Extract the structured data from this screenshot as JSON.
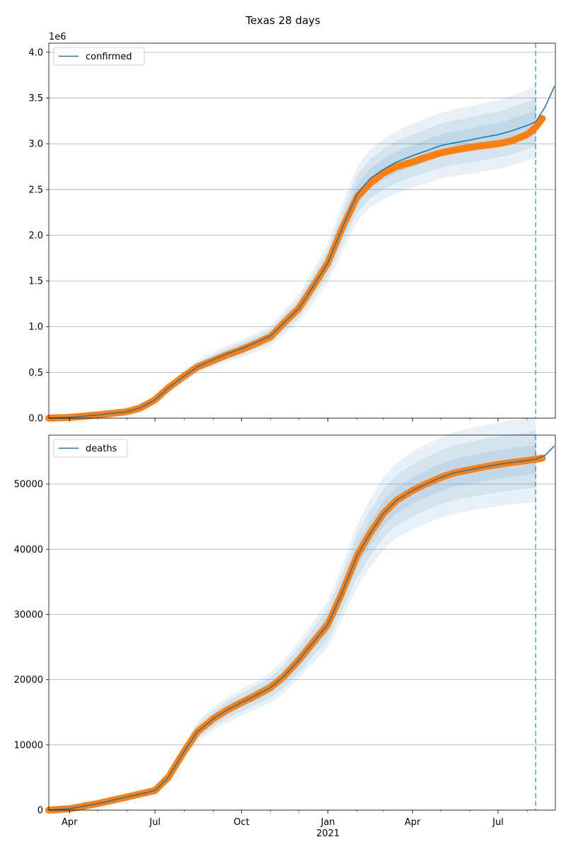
{
  "figure": {
    "title": "Texas 28 days"
  },
  "chart_data": [
    {
      "type": "line",
      "title": "",
      "legend": [
        "confirmed"
      ],
      "legend_placement": "top-left",
      "y_offset_label": "1e6",
      "y_scale": 1000000,
      "ylim": [
        0,
        4100000
      ],
      "yticks": [
        0,
        500000,
        1000000,
        1500000,
        2000000,
        2500000,
        3000000,
        3500000,
        4000000
      ],
      "ytick_labels": [
        "0.0",
        "0.5",
        "1.0",
        "1.5",
        "2.0",
        "2.5",
        "3.0",
        "3.5",
        "4.0"
      ],
      "xlim": [
        "2020-03-10",
        "2021-08-31"
      ],
      "xticks": [
        "2020-04-01",
        "2020-07-01",
        "2020-10-01",
        "2021-01-01",
        "2021-04-01",
        "2021-07-01"
      ],
      "xtick_labels": [
        "Apr",
        "Jul",
        "Oct",
        "Jan",
        "Apr",
        "Jul"
      ],
      "xtick_year_label": "2021",
      "grid": "horizontal",
      "forecast_start": "2021-08-10",
      "series": [
        {
          "name": "confirmed",
          "role": "model",
          "color": "#1f77b4",
          "points": [
            [
              "2020-03-10",
              0
            ],
            [
              "2020-04-01",
              8000
            ],
            [
              "2020-05-01",
              35000
            ],
            [
              "2020-06-01",
              70000
            ],
            [
              "2020-06-15",
              110000
            ],
            [
              "2020-07-01",
              200000
            ],
            [
              "2020-07-15",
              330000
            ],
            [
              "2020-08-01",
              460000
            ],
            [
              "2020-08-15",
              560000
            ],
            [
              "2020-09-01",
              640000
            ],
            [
              "2020-09-15",
              700000
            ],
            [
              "2020-10-01",
              760000
            ],
            [
              "2020-10-15",
              820000
            ],
            [
              "2020-11-01",
              900000
            ],
            [
              "2020-11-15",
              1040000
            ],
            [
              "2020-12-01",
              1200000
            ],
            [
              "2020-12-15",
              1420000
            ],
            [
              "2021-01-01",
              1700000
            ],
            [
              "2021-01-15",
              2050000
            ],
            [
              "2021-02-01",
              2450000
            ],
            [
              "2021-02-15",
              2620000
            ],
            [
              "2021-03-01",
              2720000
            ],
            [
              "2021-03-15",
              2800000
            ],
            [
              "2021-04-01",
              2870000
            ],
            [
              "2021-04-15",
              2920000
            ],
            [
              "2021-05-01",
              2980000
            ],
            [
              "2021-05-15",
              3010000
            ],
            [
              "2021-06-01",
              3040000
            ],
            [
              "2021-06-15",
              3070000
            ],
            [
              "2021-07-01",
              3100000
            ],
            [
              "2021-07-15",
              3140000
            ],
            [
              "2021-08-01",
              3200000
            ],
            [
              "2021-08-10",
              3240000
            ],
            [
              "2021-08-20",
              3400000
            ],
            [
              "2021-08-31",
              3650000
            ]
          ]
        },
        {
          "name": "observed",
          "role": "observed",
          "color": "#ff7f0e",
          "points": [
            [
              "2020-03-10",
              0
            ],
            [
              "2020-04-01",
              8000
            ],
            [
              "2020-05-01",
              35000
            ],
            [
              "2020-06-01",
              70000
            ],
            [
              "2020-06-15",
              110000
            ],
            [
              "2020-07-01",
              200000
            ],
            [
              "2020-07-15",
              330000
            ],
            [
              "2020-08-01",
              460000
            ],
            [
              "2020-08-15",
              560000
            ],
            [
              "2020-09-01",
              630000
            ],
            [
              "2020-09-15",
              690000
            ],
            [
              "2020-10-01",
              750000
            ],
            [
              "2020-10-15",
              810000
            ],
            [
              "2020-11-01",
              890000
            ],
            [
              "2020-11-15",
              1040000
            ],
            [
              "2020-12-01",
              1200000
            ],
            [
              "2020-12-15",
              1420000
            ],
            [
              "2021-01-01",
              1700000
            ],
            [
              "2021-01-15",
              2050000
            ],
            [
              "2021-02-01",
              2420000
            ],
            [
              "2021-02-15",
              2570000
            ],
            [
              "2021-03-01",
              2680000
            ],
            [
              "2021-03-15",
              2750000
            ],
            [
              "2021-04-01",
              2800000
            ],
            [
              "2021-04-15",
              2850000
            ],
            [
              "2021-05-01",
              2900000
            ],
            [
              "2021-05-15",
              2930000
            ],
            [
              "2021-06-01",
              2960000
            ],
            [
              "2021-06-15",
              2980000
            ],
            [
              "2021-07-01",
              3000000
            ],
            [
              "2021-07-15",
              3030000
            ],
            [
              "2021-08-01",
              3100000
            ],
            [
              "2021-08-10",
              3180000
            ],
            [
              "2021-08-18",
              3290000
            ]
          ]
        }
      ]
    },
    {
      "type": "line",
      "title": "",
      "legend": [
        "deaths"
      ],
      "legend_placement": "top-left",
      "ylim": [
        0,
        57500
      ],
      "yticks": [
        0,
        10000,
        20000,
        30000,
        40000,
        50000
      ],
      "ytick_labels": [
        "0",
        "10000",
        "20000",
        "30000",
        "40000",
        "50000"
      ],
      "xlim": [
        "2020-03-10",
        "2021-08-31"
      ],
      "xticks": [
        "2020-04-01",
        "2020-07-01",
        "2020-10-01",
        "2021-01-01",
        "2021-04-01",
        "2021-07-01"
      ],
      "xtick_labels": [
        "Apr",
        "Jul",
        "Oct",
        "Jan",
        "Apr",
        "Jul"
      ],
      "xtick_year_label": "2021",
      "grid": "horizontal",
      "forecast_start": "2021-08-10",
      "series": [
        {
          "name": "deaths",
          "role": "model",
          "color": "#1f77b4",
          "points": [
            [
              "2020-03-10",
              0
            ],
            [
              "2020-04-01",
              200
            ],
            [
              "2020-05-01",
              1000
            ],
            [
              "2020-06-01",
              2000
            ],
            [
              "2020-07-01",
              3000
            ],
            [
              "2020-07-15",
              5000
            ],
            [
              "2020-08-01",
              9000
            ],
            [
              "2020-08-15",
              12000
            ],
            [
              "2020-09-01",
              14000
            ],
            [
              "2020-09-15",
              15300
            ],
            [
              "2020-10-01",
              16500
            ],
            [
              "2020-10-15",
              17500
            ],
            [
              "2020-11-01",
              18800
            ],
            [
              "2020-11-15",
              20500
            ],
            [
              "2020-12-01",
              23000
            ],
            [
              "2020-12-15",
              25500
            ],
            [
              "2021-01-01",
              28500
            ],
            [
              "2021-01-15",
              33000
            ],
            [
              "2021-02-01",
              39000
            ],
            [
              "2021-02-15",
              42500
            ],
            [
              "2021-03-01",
              45500
            ],
            [
              "2021-03-15",
              47500
            ],
            [
              "2021-04-01",
              49000
            ],
            [
              "2021-04-15",
              50000
            ],
            [
              "2021-05-01",
              51000
            ],
            [
              "2021-05-15",
              51700
            ],
            [
              "2021-06-01",
              52200
            ],
            [
              "2021-06-15",
              52600
            ],
            [
              "2021-07-01",
              53000
            ],
            [
              "2021-07-15",
              53300
            ],
            [
              "2021-08-01",
              53600
            ],
            [
              "2021-08-10",
              53800
            ],
            [
              "2021-08-20",
              54400
            ],
            [
              "2021-08-31",
              56000
            ]
          ]
        },
        {
          "name": "observed",
          "role": "observed",
          "color": "#ff7f0e",
          "points": [
            [
              "2020-03-10",
              0
            ],
            [
              "2020-04-01",
              200
            ],
            [
              "2020-05-01",
              1000
            ],
            [
              "2020-06-01",
              2000
            ],
            [
              "2020-07-01",
              3000
            ],
            [
              "2020-07-15",
              5000
            ],
            [
              "2020-08-01",
              9000
            ],
            [
              "2020-08-15",
              12000
            ],
            [
              "2020-09-01",
              14000
            ],
            [
              "2020-09-15",
              15300
            ],
            [
              "2020-10-01",
              16500
            ],
            [
              "2020-10-15",
              17500
            ],
            [
              "2020-11-01",
              18800
            ],
            [
              "2020-11-15",
              20500
            ],
            [
              "2020-12-01",
              23000
            ],
            [
              "2020-12-15",
              25500
            ],
            [
              "2021-01-01",
              28500
            ],
            [
              "2021-01-15",
              33000
            ],
            [
              "2021-02-01",
              39000
            ],
            [
              "2021-02-15",
              42500
            ],
            [
              "2021-03-01",
              45500
            ],
            [
              "2021-03-15",
              47500
            ],
            [
              "2021-04-01",
              49000
            ],
            [
              "2021-04-15",
              50000
            ],
            [
              "2021-05-01",
              51000
            ],
            [
              "2021-05-15",
              51700
            ],
            [
              "2021-06-01",
              52200
            ],
            [
              "2021-06-15",
              52600
            ],
            [
              "2021-07-01",
              53000
            ],
            [
              "2021-07-15",
              53300
            ],
            [
              "2021-08-01",
              53600
            ],
            [
              "2021-08-10",
              53800
            ],
            [
              "2021-08-18",
              54000
            ]
          ]
        }
      ]
    }
  ]
}
